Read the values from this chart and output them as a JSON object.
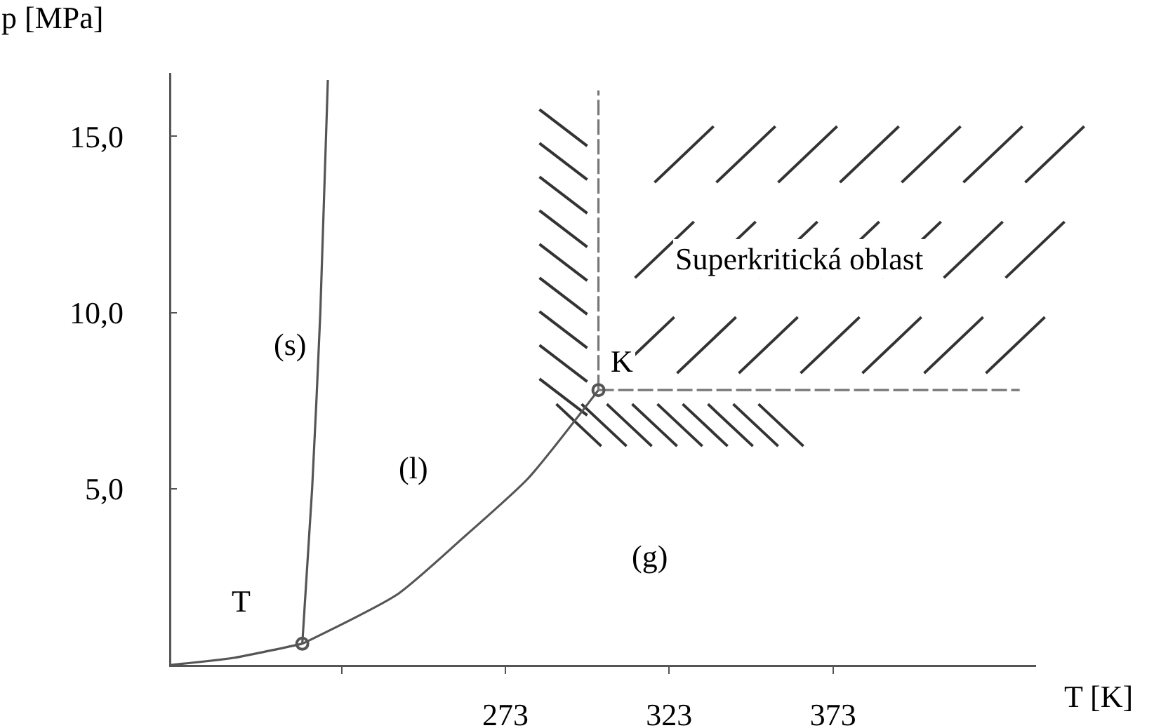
{
  "chart_data": {
    "type": "line",
    "xlabel": "T [K]",
    "ylabel": "p [MPa]",
    "xlim": [
      171,
      435
    ],
    "ylim": [
      0,
      16.8
    ],
    "xticks": [
      {
        "value": 223,
        "label": null
      },
      273,
      323,
      373
    ],
    "yticks": [
      {
        "value": 5,
        "label": "5,0"
      },
      {
        "value": 10,
        "label": "10,0"
      },
      {
        "value": 15,
        "label": "15,0"
      }
    ],
    "grid": false,
    "marker": "none",
    "line_style": "solid",
    "series": [
      {
        "color": "#555555",
        "x": [
          171,
          190,
          211
        ],
        "values": [
          0,
          0.2,
          0.6
        ]
      },
      {
        "color": "#555555",
        "x": [
          211,
          214,
          216.5,
          218.8
        ],
        "values": [
          0.6,
          5,
          10,
          16.6
        ]
      },
      {
        "color": "#555555",
        "x": [
          211,
          240,
          260,
          280,
          301.4
        ],
        "values": [
          0.6,
          2.0,
          3.6,
          5.3,
          7.8
        ]
      },
      {
        "color": "#777777",
        "line_style": "dashed",
        "x": [
          301.4,
          301.4
        ],
        "values": [
          7.8,
          16.3
        ]
      },
      {
        "color": "#777777",
        "line_style": "dashed",
        "x": [
          301.4,
          430
        ],
        "values": [
          7.8,
          7.8
        ]
      },
      {
        "type": "scatter",
        "marker": "circle",
        "color": "#555555",
        "x": [
          211,
          301.4
        ],
        "values": [
          0.6,
          7.8
        ]
      }
    ],
    "annotations": [
      {
        "text": "(s)",
        "x": 207,
        "y": 9.1
      },
      {
        "text": "(l)",
        "x": 245,
        "y": 5.6
      },
      {
        "text": "(g)",
        "x": 317,
        "y": 3.1
      },
      {
        "text": "T",
        "x": 192.5,
        "y": 1.8
      },
      {
        "text": "K",
        "x": 308.5,
        "y": 8.6
      },
      "Superkritická oblast"
    ]
  }
}
